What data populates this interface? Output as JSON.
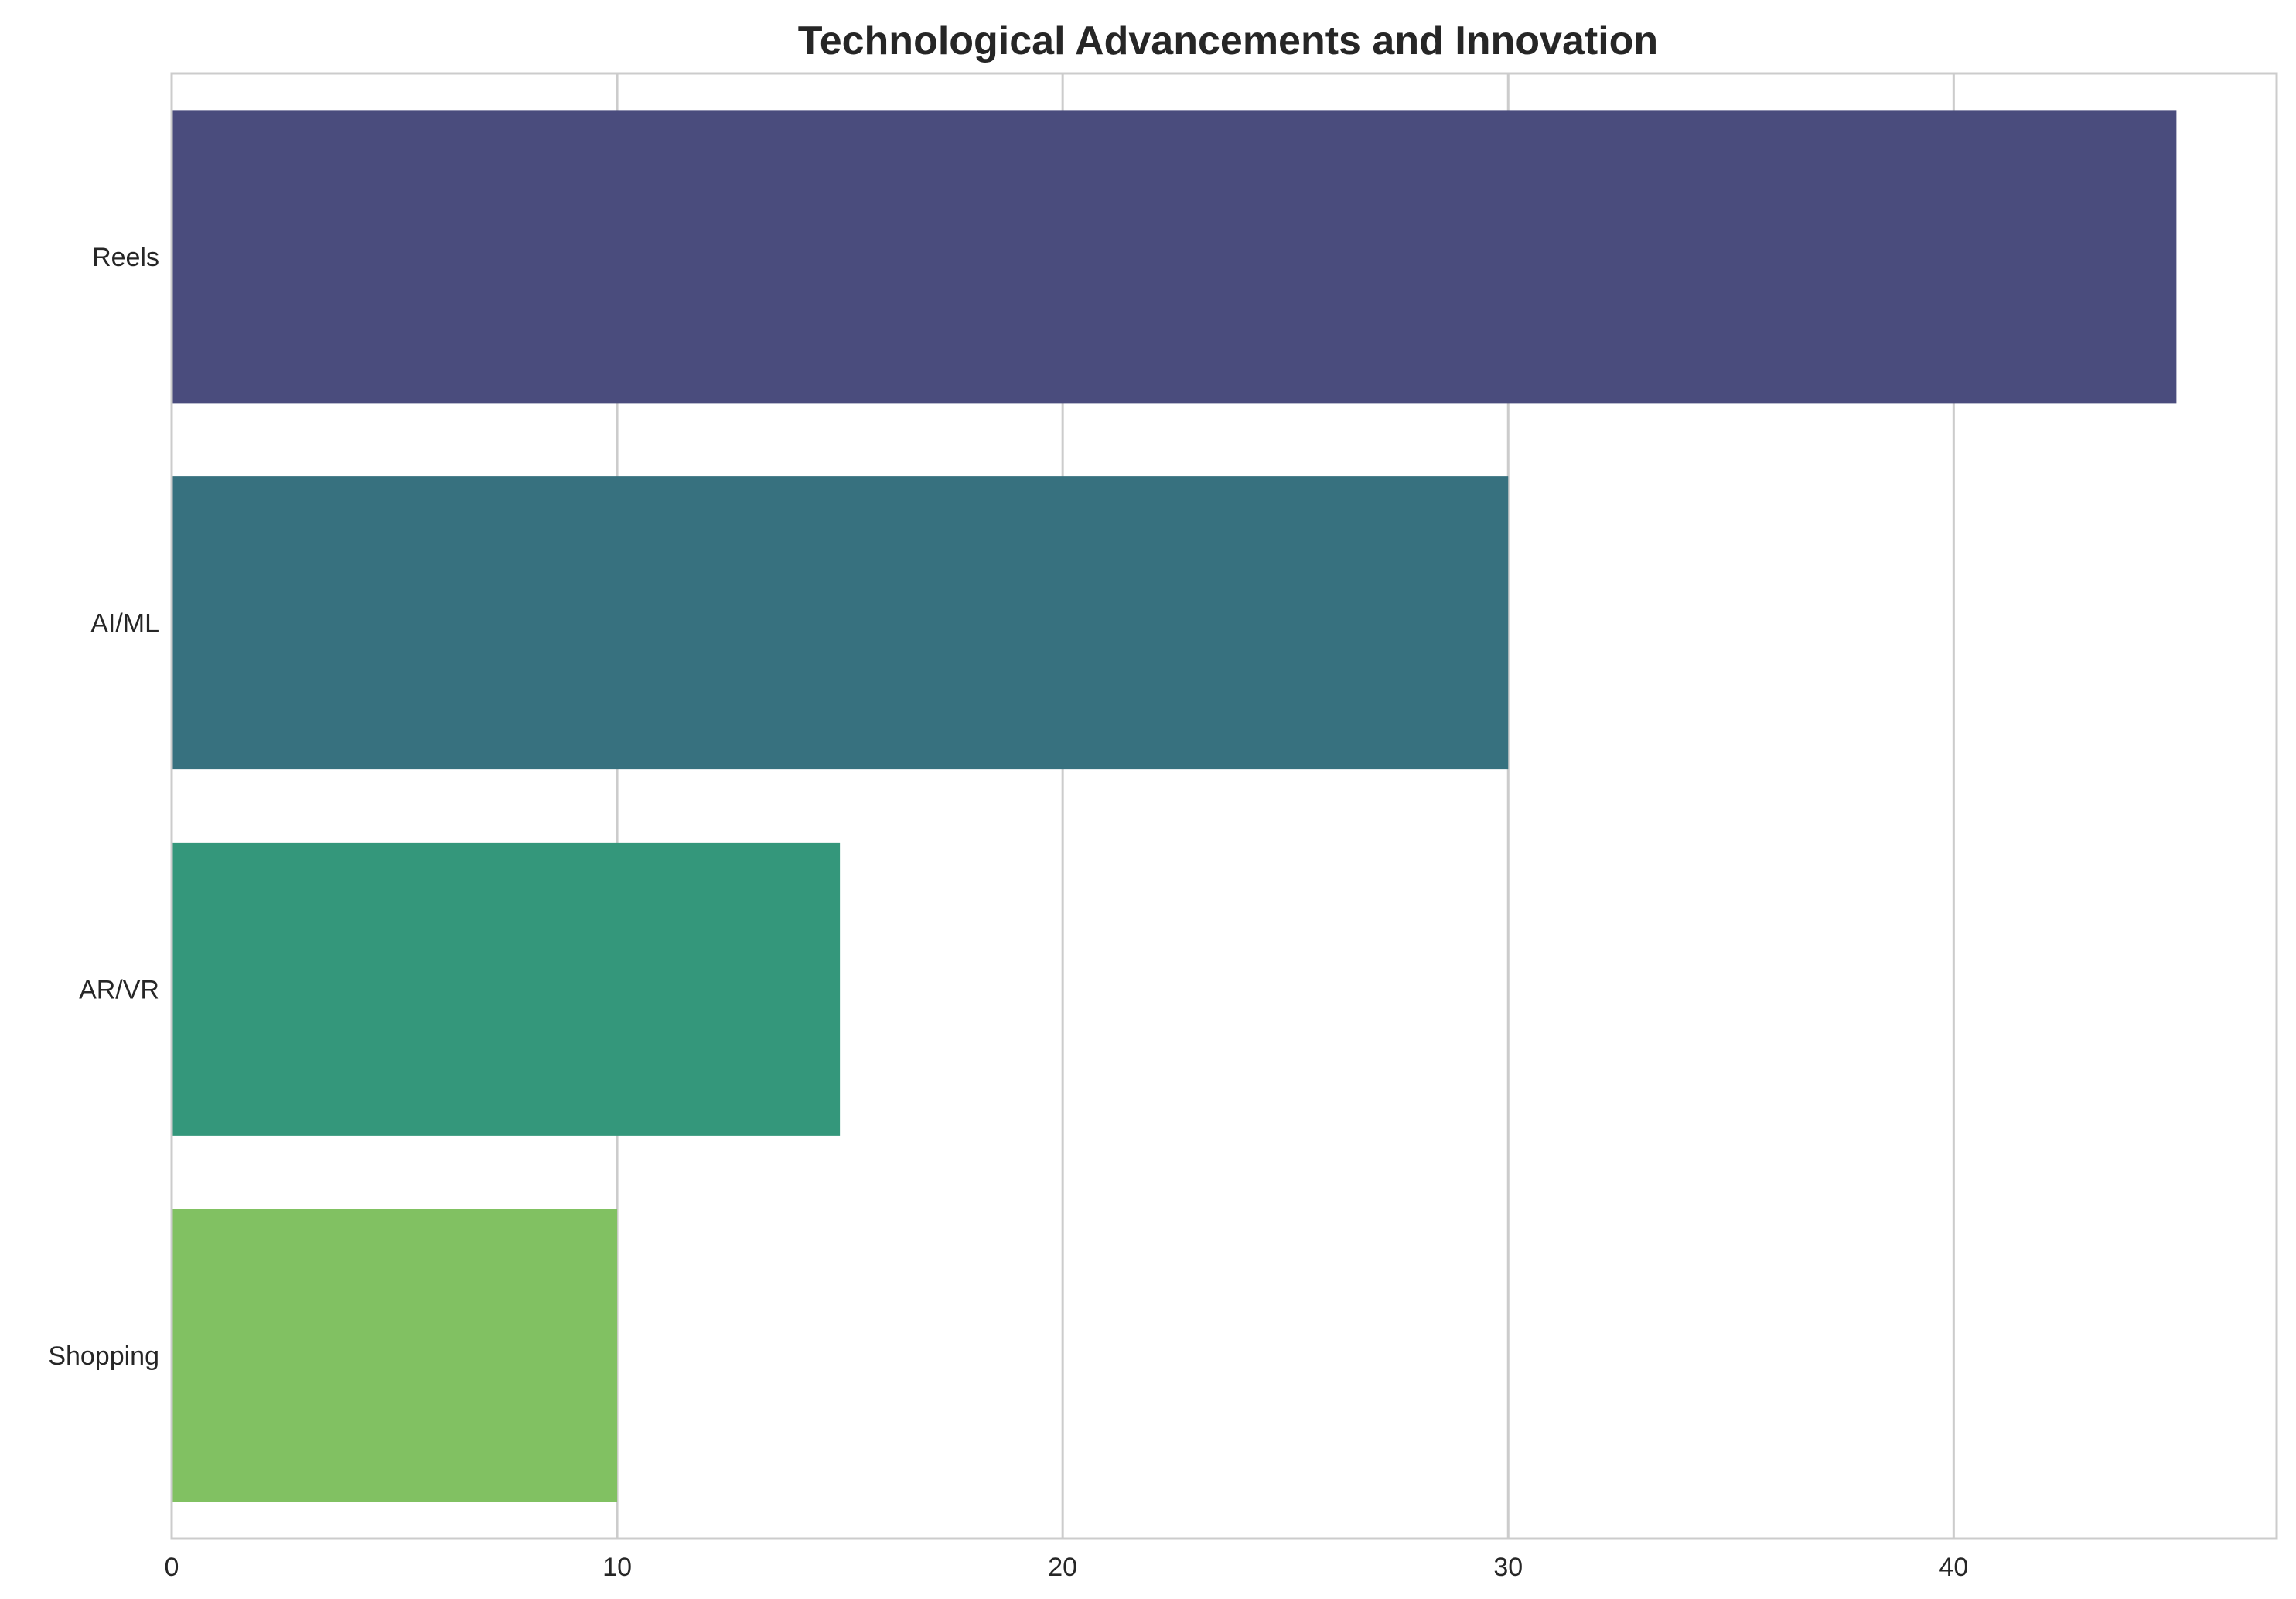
{
  "chart_data": {
    "type": "bar",
    "orientation": "horizontal",
    "title": "Technological Advancements and Innovation",
    "xlabel": "",
    "ylabel": "",
    "categories": [
      "Reels",
      "AI/ML",
      "AR/VR",
      "Shopping"
    ],
    "values": [
      45,
      30,
      15,
      10
    ],
    "xlim": [
      0,
      47.25
    ],
    "xticks": [
      0,
      10,
      20,
      30,
      40
    ],
    "grid": true,
    "colors": [
      "#4a4c7d",
      "#37717f",
      "#34977b",
      "#81c162"
    ],
    "axis_color": "#cccccc",
    "background": "#ffffff"
  }
}
